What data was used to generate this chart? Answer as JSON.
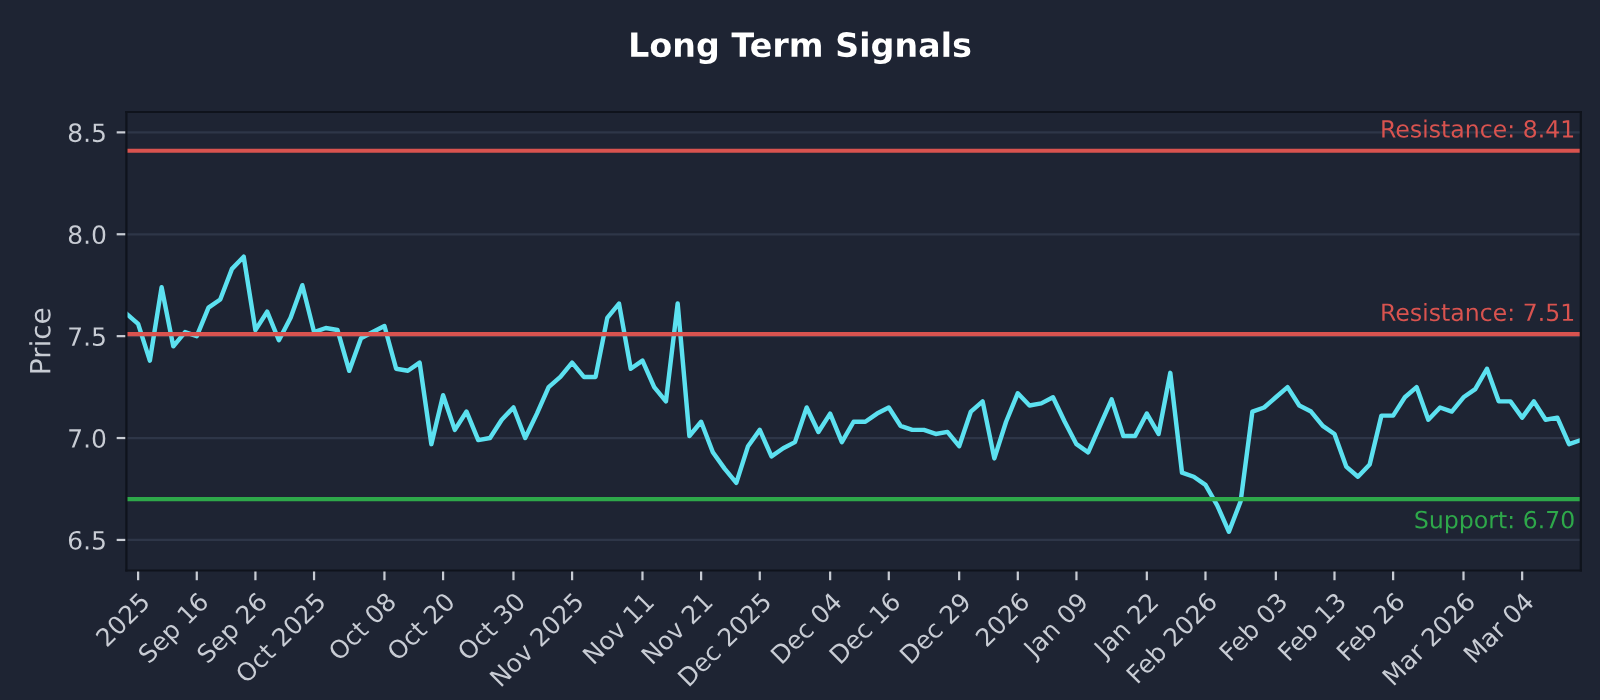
{
  "chart_data": {
    "type": "line",
    "title": "Long Term Signals",
    "ylabel": "Price",
    "categories": [
      null,
      "2025",
      null,
      null,
      null,
      null,
      "Sep 16",
      null,
      null,
      null,
      null,
      "Sep 26",
      null,
      null,
      null,
      null,
      "Oct 2025",
      null,
      null,
      null,
      null,
      null,
      "Oct 08",
      null,
      null,
      null,
      null,
      "Oct 20",
      null,
      null,
      null,
      null,
      null,
      "Oct 30",
      null,
      null,
      null,
      null,
      "Nov 2025",
      null,
      null,
      null,
      null,
      null,
      "Nov 11",
      null,
      null,
      null,
      null,
      "Nov 21",
      null,
      null,
      null,
      null,
      "Dec 2025",
      null,
      null,
      null,
      null,
      null,
      "Dec 04",
      null,
      null,
      null,
      null,
      "Dec 16",
      null,
      null,
      null,
      null,
      null,
      "Dec 29",
      null,
      null,
      null,
      null,
      "2026",
      null,
      null,
      null,
      null,
      "Jan 09",
      null,
      null,
      null,
      null,
      null,
      "Jan 22",
      null,
      null,
      null,
      null,
      "Feb 2026",
      null,
      null,
      null,
      null,
      null,
      "Feb 03",
      null,
      null,
      null,
      null,
      "Feb 13",
      null,
      null,
      null,
      null,
      "Feb 26",
      null,
      null,
      null,
      null,
      null,
      "Mar 2026",
      null,
      null,
      null,
      null,
      "Mar 04",
      null,
      null,
      null,
      null,
      null
    ],
    "series": [
      {
        "color": "#5ce1f0",
        "values": [
          7.61,
          7.56,
          7.38,
          7.74,
          7.45,
          7.52,
          7.5,
          7.64,
          7.68,
          7.83,
          7.89,
          7.53,
          7.62,
          7.48,
          7.59,
          7.75,
          7.52,
          7.54,
          7.53,
          7.33,
          7.49,
          7.52,
          7.55,
          7.34,
          7.33,
          7.37,
          6.97,
          7.21,
          7.04,
          7.13,
          6.99,
          7.0,
          7.09,
          7.15,
          7.0,
          7.12,
          7.25,
          7.3,
          7.37,
          7.3,
          7.3,
          7.59,
          7.66,
          7.34,
          7.38,
          7.25,
          7.18,
          7.66,
          7.01,
          7.08,
          6.93,
          6.85,
          6.78,
          6.96,
          7.04,
          6.91,
          6.95,
          6.98,
          7.15,
          7.03,
          7.12,
          6.98,
          7.08,
          7.08,
          7.12,
          7.15,
          7.06,
          7.04,
          7.04,
          7.02,
          7.03,
          6.96,
          7.13,
          7.18,
          6.9,
          7.08,
          7.22,
          7.16,
          7.17,
          7.2,
          7.08,
          6.97,
          6.93,
          7.06,
          7.19,
          7.01,
          7.01,
          7.12,
          7.02,
          7.32,
          6.83,
          6.81,
          6.77,
          6.67,
          6.54,
          6.69,
          7.13,
          7.15,
          7.2,
          7.25,
          7.16,
          7.13,
          7.06,
          7.02,
          6.86,
          6.81,
          6.87,
          7.11,
          7.11,
          7.2,
          7.25,
          7.09,
          7.15,
          7.13,
          7.2,
          7.24,
          7.34,
          7.18,
          7.18,
          7.1,
          7.18,
          7.09,
          7.1,
          6.97,
          6.99
        ]
      }
    ],
    "ylim": [
      6.35,
      8.6
    ],
    "yticks": [
      {
        "value": 6.5,
        "label": "6.5"
      },
      {
        "value": 7.0,
        "label": "7.0"
      },
      {
        "value": 7.5,
        "label": "7.5"
      },
      {
        "value": 8.0,
        "label": "8.0"
      },
      {
        "value": 8.5,
        "label": "8.5"
      }
    ],
    "ref_lines": [
      {
        "axis": "y",
        "value": 8.41,
        "label": "Resistance: 8.41",
        "color": "#d9534f"
      },
      {
        "axis": "y",
        "value": 7.51,
        "label": "Resistance: 7.51",
        "color": "#d9534f"
      },
      {
        "axis": "y",
        "value": 6.7,
        "label": "Support: 6.70",
        "color": "#2ea84a"
      }
    ],
    "grid": "y",
    "marker": "none",
    "line_style": "solid",
    "legend": false
  }
}
